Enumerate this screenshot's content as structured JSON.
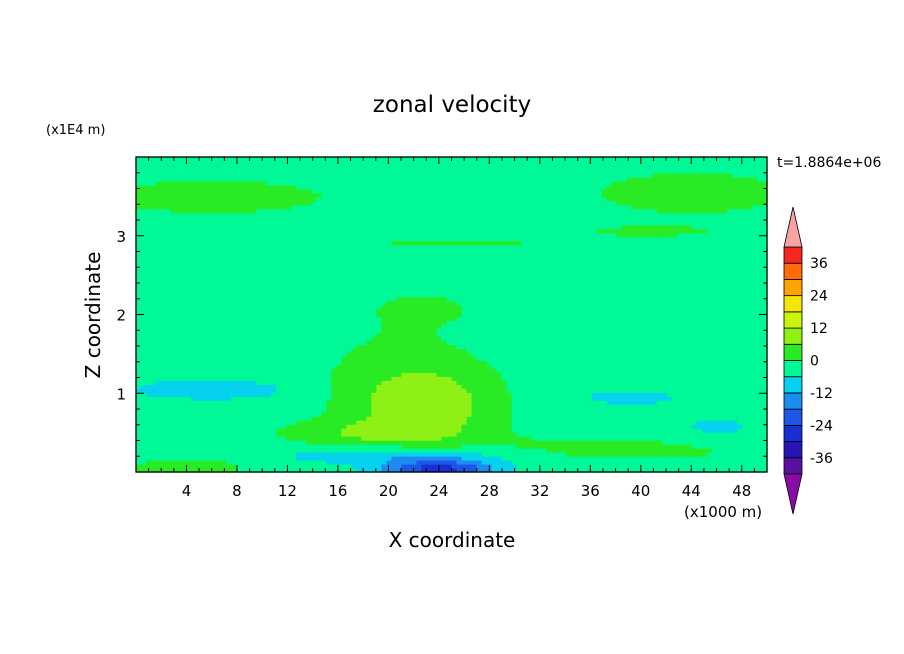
{
  "chart_data": {
    "type": "heatmap",
    "title": "zonal velocity",
    "xlabel": "X coordinate",
    "ylabel": "Z coordinate",
    "x_unit": "(x1000 m)",
    "y_unit": "(x1E4 m)",
    "time_label": "t=1.8864e+06",
    "xlim": [
      0,
      50
    ],
    "ylim": [
      0,
      4
    ],
    "x_ticks": [
      "4",
      "8",
      "12",
      "16",
      "20",
      "24",
      "28",
      "32",
      "36",
      "40",
      "44",
      "48"
    ],
    "y_ticks": [
      "1",
      "2",
      "3"
    ],
    "colorbar": {
      "tick_labels": [
        "36",
        "24",
        "12",
        "0",
        "-12",
        "-24",
        "-36"
      ],
      "tick_values": [
        36,
        24,
        12,
        0,
        -12,
        -24,
        -36
      ],
      "range": [
        -42,
        42
      ],
      "levels": [
        {
          "lo": -42,
          "hi": -36,
          "color": "#5a109e"
        },
        {
          "lo": -36,
          "hi": -30,
          "color": "#2813b4"
        },
        {
          "lo": -30,
          "hi": -24,
          "color": "#1a2fd2"
        },
        {
          "lo": -24,
          "hi": -18,
          "color": "#1d57e6"
        },
        {
          "lo": -18,
          "hi": -12,
          "color": "#1c8cf0"
        },
        {
          "lo": -12,
          "hi": -6,
          "color": "#06d2f0"
        },
        {
          "lo": -6,
          "hi": 0,
          "color": "#00f996"
        },
        {
          "lo": 0,
          "hi": 6,
          "color": "#28eb25"
        },
        {
          "lo": 6,
          "hi": 12,
          "color": "#8ef015"
        },
        {
          "lo": 12,
          "hi": 18,
          "color": "#c8f50a"
        },
        {
          "lo": 18,
          "hi": 24,
          "color": "#f5e60a"
        },
        {
          "lo": 24,
          "hi": 30,
          "color": "#ffa300"
        },
        {
          "lo": 30,
          "hi": 36,
          "color": "#ff6a0a"
        },
        {
          "lo": 36,
          "hi": 42,
          "color": "#f5281e"
        }
      ],
      "under_color": "#8a0aa6",
      "over_color": "#f5a3a3"
    }
  }
}
